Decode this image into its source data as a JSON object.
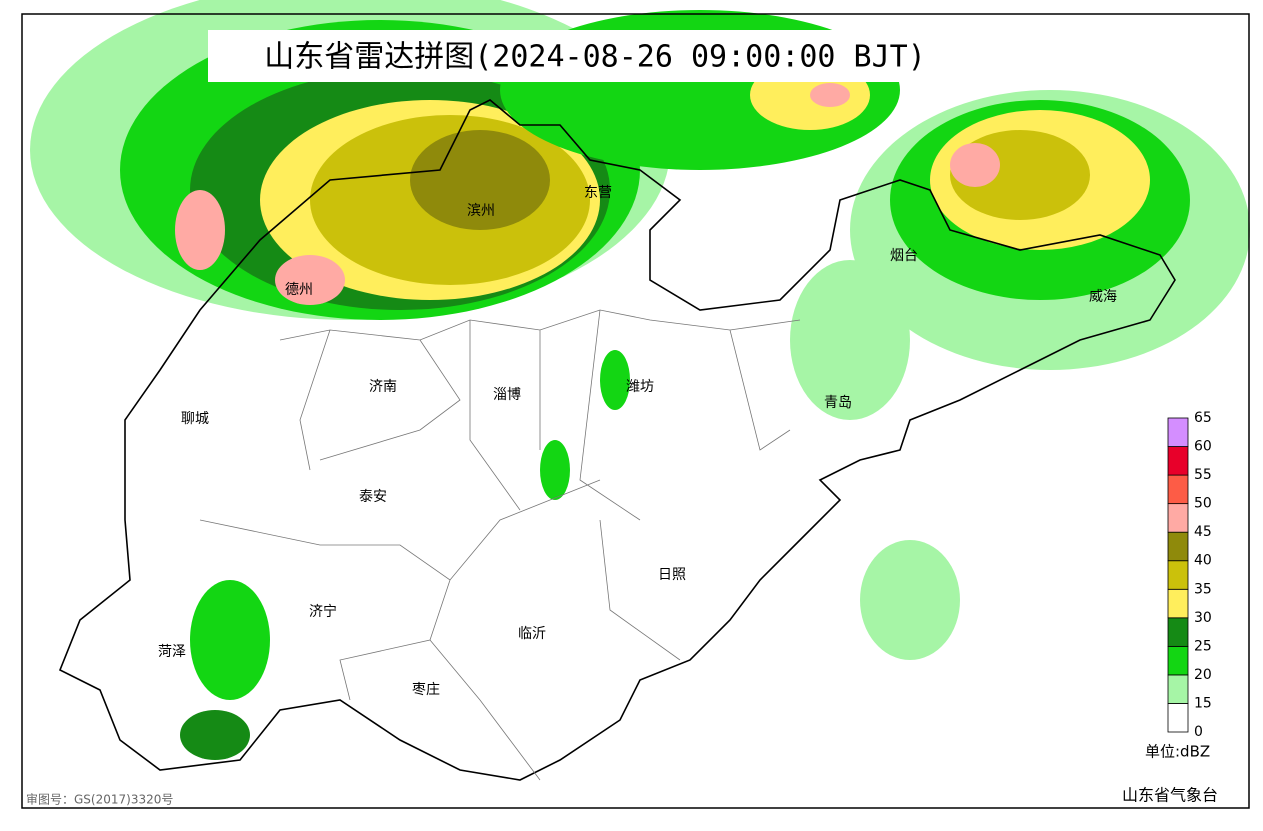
{
  "title": "山东省雷达拼图(2024-08-26 09:00:00 BJT)",
  "cities": [
    "滨州",
    "东营",
    "德州",
    "烟台",
    "威海",
    "济南",
    "淄博",
    "潍坊",
    "青岛",
    "聊城",
    "泰安",
    "日照",
    "济宁",
    "临沂",
    "菏泽",
    "枣庄"
  ],
  "legend": {
    "levels": [
      0,
      15,
      20,
      25,
      30,
      35,
      40,
      45,
      50,
      55,
      60,
      65
    ],
    "colors": [
      "#ffffff",
      "#a6f5a6",
      "#13d613",
      "#158a15",
      "#ffee5c",
      "#cbc10b",
      "#8f8a0b",
      "#ffaaa4",
      "#fd5c46",
      "#e8002a",
      "#d48eff"
    ],
    "unit": "单位:dBZ"
  },
  "footer": {
    "approval": "审图号：GS(2017)3320号",
    "source": "山东省气象台"
  }
}
